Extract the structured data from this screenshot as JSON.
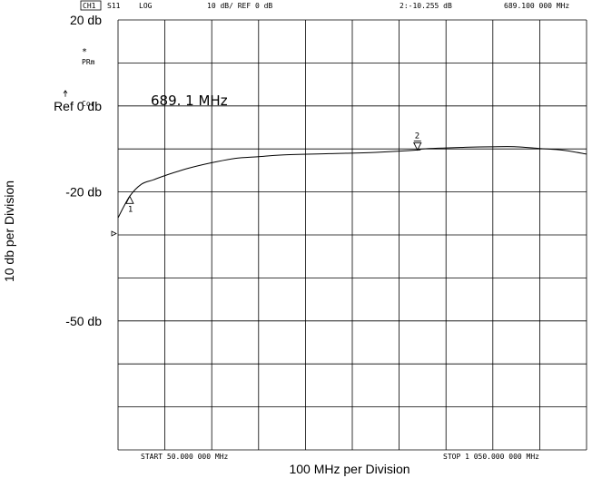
{
  "header": {
    "channel": "CH1",
    "parameter": "S11",
    "format": "LOG",
    "scale": "10 dB/ REF 0 dB",
    "marker_readout": "2:-10.255 dB",
    "marker_freq": "689.100 000 MHz"
  },
  "status": {
    "star": "*",
    "prm": "PRm",
    "cor": "Cor"
  },
  "display": {
    "marker_freq_big": "689. 1  MHz"
  },
  "footer": {
    "start": "START  50.000 000 MHz",
    "stop": "STOP 1 050.000 000 MHz"
  },
  "chart_data": {
    "type": "line",
    "title": "",
    "xlabel": "100 MHz per Division",
    "ylabel": "10 db per Division",
    "x_unit": "MHz",
    "y_unit": "dB",
    "xlim": [
      50,
      1050
    ],
    "ylim": [
      -80,
      20
    ],
    "y_tick_labels": [
      {
        "value": 20,
        "label": "20 db"
      },
      {
        "value": 0,
        "label": "Ref 0 db"
      },
      {
        "value": -20,
        "label": "-20 db"
      },
      {
        "value": -50,
        "label": "-50 db"
      }
    ],
    "grid": true,
    "series": [
      {
        "x": [
          50,
          75,
          100,
          125,
          150,
          200,
          250,
          300,
          350,
          400,
          500,
          600,
          689.1,
          700,
          800,
          850,
          900,
          950,
          1000,
          1050
        ],
        "y": [
          -26,
          -21,
          -18.2,
          -17.2,
          -16.2,
          -14.5,
          -13.2,
          -12.2,
          -11.8,
          -11.4,
          -11.1,
          -10.8,
          -10.255,
          -10.0,
          -9.6,
          -9.5,
          -9.5,
          -9.9,
          -10.3,
          -11.2
        ]
      }
    ],
    "markers": [
      {
        "label": "1",
        "x": 75,
        "y": -21
      },
      {
        "label": "2",
        "x": 689.1,
        "y": -10.255
      }
    ],
    "reference_level": 0
  }
}
